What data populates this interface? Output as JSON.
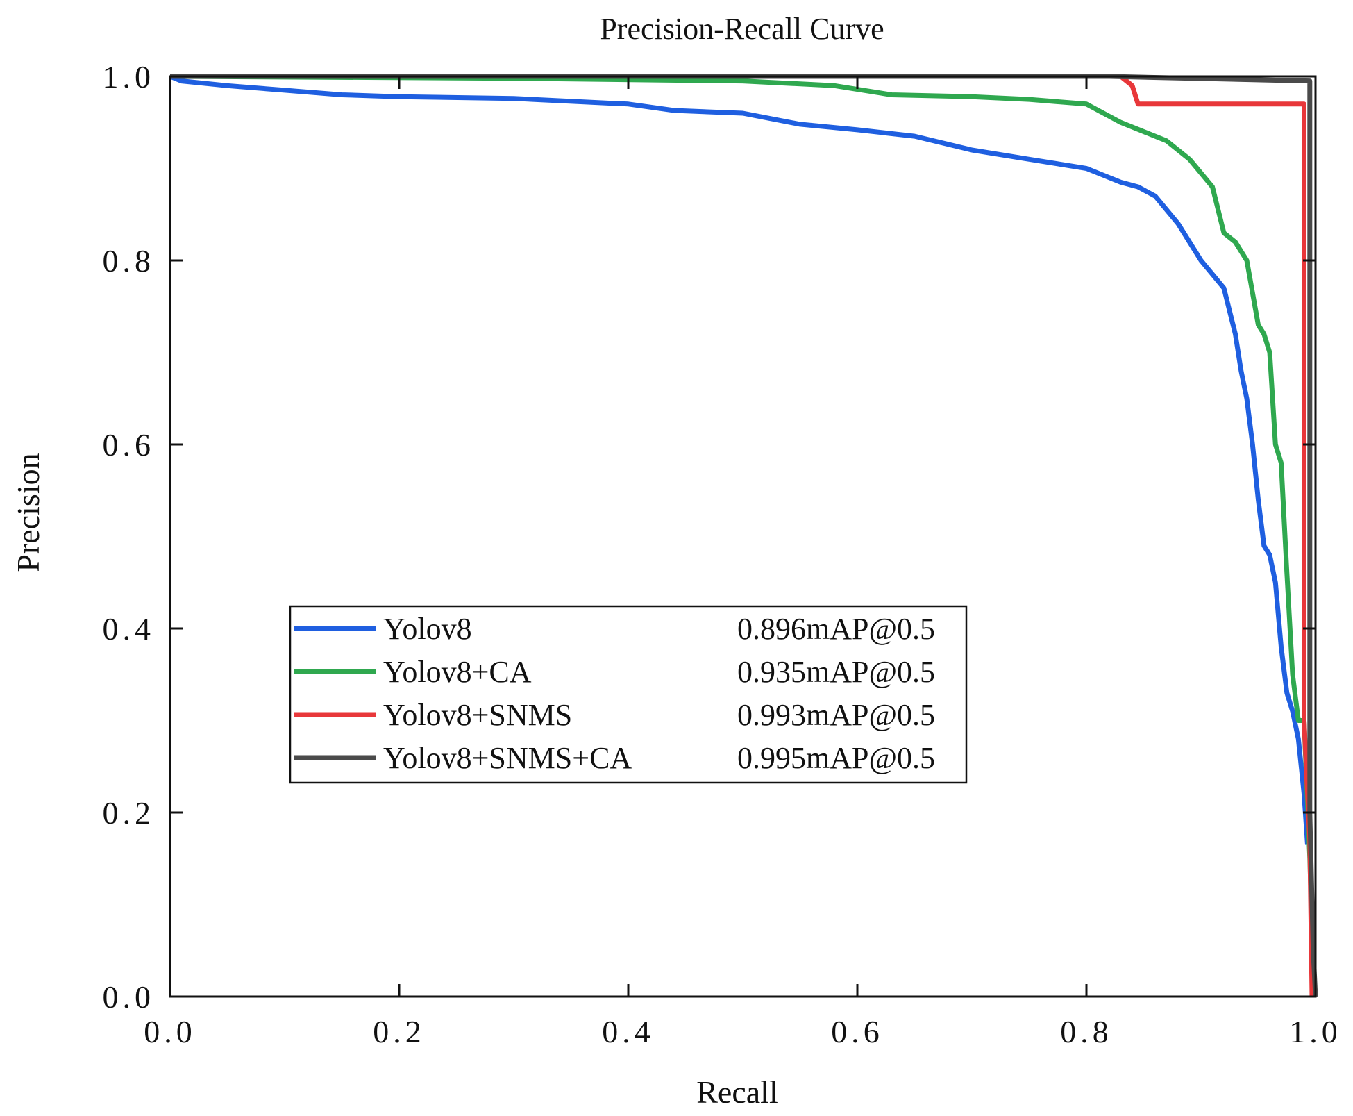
{
  "chart_data": {
    "type": "line",
    "title": "Precision-Recall Curve",
    "xlabel": "Recall",
    "ylabel": "Precision",
    "xlim": [
      0.0,
      1.0
    ],
    "ylim": [
      0.0,
      1.0
    ],
    "xticks": [
      "0.0",
      "0.2",
      "0.4",
      "0.6",
      "0.8",
      "1.0"
    ],
    "yticks": [
      "0.0",
      "0.2",
      "0.4",
      "0.6",
      "0.8",
      "1.0"
    ],
    "grid": false,
    "legend_position": "center-left",
    "series": [
      {
        "name": "Yolov8",
        "score": "0.896mAP@0.5",
        "color": "#1f5fe0",
        "x": [
          0.0,
          0.01,
          0.05,
          0.1,
          0.15,
          0.2,
          0.3,
          0.4,
          0.44,
          0.5,
          0.55,
          0.6,
          0.65,
          0.7,
          0.75,
          0.8,
          0.83,
          0.845,
          0.86,
          0.87,
          0.88,
          0.89,
          0.9,
          0.91,
          0.92,
          0.93,
          0.935,
          0.94,
          0.945,
          0.95,
          0.955,
          0.96,
          0.965,
          0.97,
          0.975,
          0.98,
          0.985,
          0.99,
          0.993
        ],
        "y": [
          1.0,
          0.995,
          0.99,
          0.985,
          0.98,
          0.978,
          0.976,
          0.97,
          0.963,
          0.96,
          0.948,
          0.942,
          0.935,
          0.92,
          0.91,
          0.9,
          0.885,
          0.88,
          0.87,
          0.855,
          0.84,
          0.82,
          0.8,
          0.785,
          0.77,
          0.72,
          0.68,
          0.65,
          0.6,
          0.54,
          0.49,
          0.48,
          0.45,
          0.38,
          0.33,
          0.31,
          0.28,
          0.22,
          0.165
        ]
      },
      {
        "name": "Yolov8+CA",
        "score": "0.935mAP@0.5",
        "color": "#2fa84f",
        "x": [
          0.0,
          0.3,
          0.5,
          0.58,
          0.63,
          0.7,
          0.75,
          0.8,
          0.83,
          0.85,
          0.87,
          0.89,
          0.9,
          0.91,
          0.92,
          0.93,
          0.94,
          0.95,
          0.955,
          0.96,
          0.965,
          0.97,
          0.975,
          0.98,
          0.985,
          0.99,
          0.995,
          0.997,
          0.999
        ],
        "y": [
          1.0,
          0.998,
          0.995,
          0.99,
          0.98,
          0.978,
          0.975,
          0.97,
          0.95,
          0.94,
          0.93,
          0.91,
          0.895,
          0.88,
          0.83,
          0.82,
          0.8,
          0.73,
          0.72,
          0.7,
          0.6,
          0.58,
          0.46,
          0.35,
          0.3,
          0.3,
          0.15,
          0.07,
          0.0
        ]
      },
      {
        "name": "Yolov8+SNMS",
        "score": "0.993mAP@0.5",
        "color": "#e8373a",
        "x": [
          0.48,
          0.83,
          0.835,
          0.84,
          0.845,
          0.99,
          0.99,
          0.995,
          0.997
        ],
        "y": [
          1.0,
          1.0,
          0.995,
          0.99,
          0.97,
          0.97,
          0.3,
          0.17,
          0.0
        ]
      },
      {
        "name": "Yolov8+SNMS+CA",
        "score": "0.995mAP@0.5",
        "color": "#4a4a4a",
        "x": [
          0.0,
          0.82,
          0.995,
          0.995,
          0.998,
          1.0
        ],
        "y": [
          1.0,
          1.0,
          0.995,
          0.2,
          0.05,
          0.0
        ]
      }
    ]
  }
}
